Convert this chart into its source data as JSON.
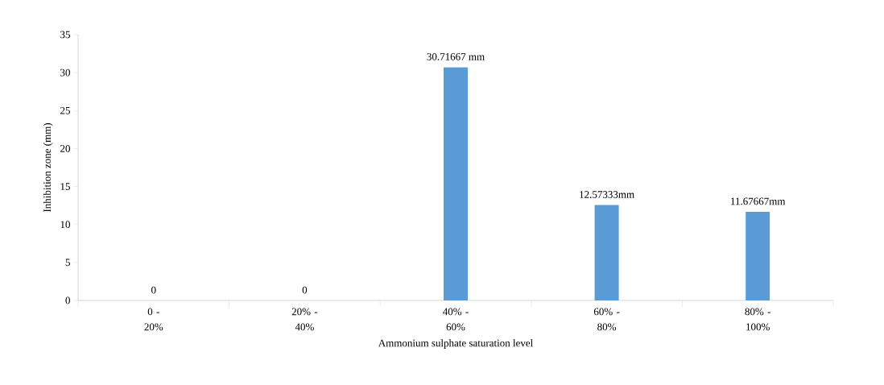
{
  "chart_data": {
    "type": "bar",
    "xlabel": "Ammonium sulphate saturation level",
    "ylabel": "Inhibition zone (mm)",
    "categories": [
      "0 - 20%",
      "20% - 40%",
      "40% - 60%",
      "60% - 80%",
      "80% - 100%"
    ],
    "values": [
      0,
      0,
      30.71667,
      12.57333,
      11.67667
    ],
    "value_labels": [
      "0",
      "0",
      "30.71667 mm",
      "12.57333mm",
      "11.67667mm"
    ],
    "color": "#5b9bd5",
    "ylim": [
      0,
      35
    ],
    "yticks": [
      0,
      5,
      10,
      15,
      20,
      25,
      30,
      35
    ],
    "grid": false
  }
}
